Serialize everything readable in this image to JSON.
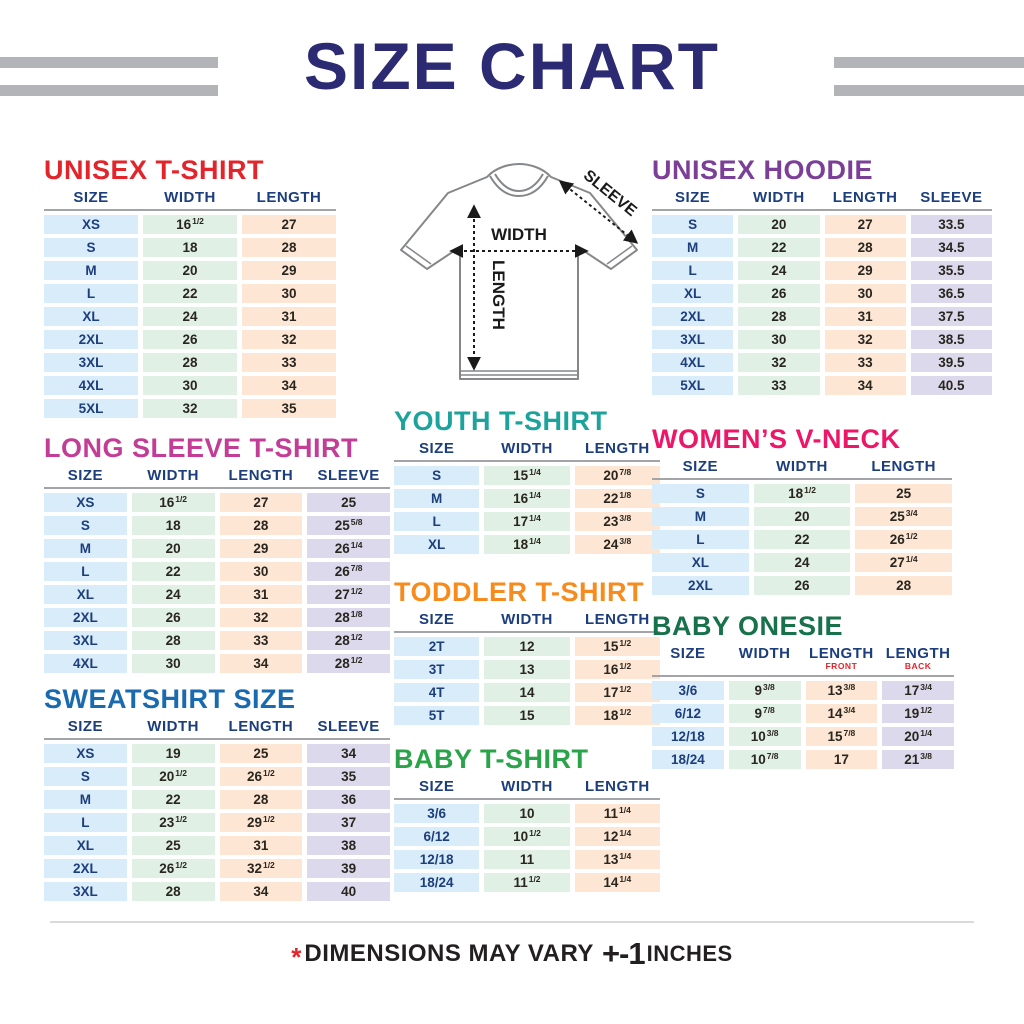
{
  "title": "SIZE CHART",
  "footer": {
    "asterisk": "*",
    "text": "DIMENSIONS MAY VARY",
    "variance": "+-1",
    "unit": "INCHES"
  },
  "diagram": {
    "width_label": "WIDTH",
    "length_label": "LENGTH",
    "sleeve_label": "SLEEVE"
  },
  "colors": {
    "title_navy": "#2b2a72",
    "header_navy": "#1d3e7d",
    "cell_dark": "#29251f",
    "size_bg": "#d9ecf9",
    "width_bg": "#e0f0e4",
    "length_bg": "#fde6d3",
    "sleeve_bg": "#dcd9ec",
    "gray_bar": "#b2b4b7",
    "accent_red": "#e3242b"
  },
  "tables": [
    {
      "id": "unisex-tshirt",
      "title": "UNISEX T-SHIRT",
      "title_color": "#e3242b",
      "columns": [
        {
          "label": "SIZE",
          "type": "size"
        },
        {
          "label": "WIDTH",
          "type": "width"
        },
        {
          "label": "LENGTH",
          "type": "length"
        }
      ],
      "rows": [
        [
          "XS",
          "16|1/2",
          "27"
        ],
        [
          "S",
          "18",
          "28"
        ],
        [
          "M",
          "20",
          "29"
        ],
        [
          "L",
          "22",
          "30"
        ],
        [
          "XL",
          "24",
          "31"
        ],
        [
          "2XL",
          "26",
          "32"
        ],
        [
          "3XL",
          "28",
          "33"
        ],
        [
          "4XL",
          "30",
          "34"
        ],
        [
          "5XL",
          "32",
          "35"
        ]
      ]
    },
    {
      "id": "long-sleeve-tshirt",
      "title": "LONG SLEEVE T-SHIRT",
      "title_color": "#c33d96",
      "columns": [
        {
          "label": "SIZE",
          "type": "size"
        },
        {
          "label": "WIDTH",
          "type": "width"
        },
        {
          "label": "LENGTH",
          "type": "length"
        },
        {
          "label": "SLEEVE",
          "type": "sleeve"
        }
      ],
      "rows": [
        [
          "XS",
          "16|1/2",
          "27",
          "25"
        ],
        [
          "S",
          "18",
          "28",
          "25|5/8"
        ],
        [
          "M",
          "20",
          "29",
          "26|1/4"
        ],
        [
          "L",
          "22",
          "30",
          "26|7/8"
        ],
        [
          "XL",
          "24",
          "31",
          "27|1/2"
        ],
        [
          "2XL",
          "26",
          "32",
          "28|1/8"
        ],
        [
          "3XL",
          "28",
          "33",
          "28|1/2"
        ],
        [
          "4XL",
          "30",
          "34",
          "28|1/2"
        ]
      ]
    },
    {
      "id": "sweatshirt",
      "title": "SWEATSHIRT SIZE",
      "title_color": "#1a6ab0",
      "columns": [
        {
          "label": "SIZE",
          "type": "size"
        },
        {
          "label": "WIDTH",
          "type": "width"
        },
        {
          "label": "LENGTH",
          "type": "length"
        },
        {
          "label": "SLEEVE",
          "type": "sleeve"
        }
      ],
      "rows": [
        [
          "XS",
          "19",
          "25",
          "34"
        ],
        [
          "S",
          "20|1/2",
          "26|1/2",
          "35"
        ],
        [
          "M",
          "22",
          "28",
          "36"
        ],
        [
          "L",
          "23|1/2",
          "29|1/2",
          "37"
        ],
        [
          "XL",
          "25",
          "31",
          "38"
        ],
        [
          "2XL",
          "26|1/2",
          "32|1/2",
          "39"
        ],
        [
          "3XL",
          "28",
          "34",
          "40"
        ]
      ]
    },
    {
      "id": "youth-tshirt",
      "title": "YOUTH T-SHIRT",
      "title_color": "#1ba39c",
      "columns": [
        {
          "label": "SIZE",
          "type": "size"
        },
        {
          "label": "WIDTH",
          "type": "width"
        },
        {
          "label": "LENGTH",
          "type": "length"
        }
      ],
      "rows": [
        [
          "S",
          "15|1/4",
          "20|7/8"
        ],
        [
          "M",
          "16|1/4",
          "22|1/8"
        ],
        [
          "L",
          "17|1/4",
          "23|3/8"
        ],
        [
          "XL",
          "18|1/4",
          "24|3/8"
        ]
      ]
    },
    {
      "id": "toddler-tshirt",
      "title": "TODDLER T-SHIRT",
      "title_color": "#f68b1e",
      "columns": [
        {
          "label": "SIZE",
          "type": "size"
        },
        {
          "label": "WIDTH",
          "type": "width"
        },
        {
          "label": "LENGTH",
          "type": "length"
        }
      ],
      "rows": [
        [
          "2T",
          "12",
          "15|1/2"
        ],
        [
          "3T",
          "13",
          "16|1/2"
        ],
        [
          "4T",
          "14",
          "17|1/2"
        ],
        [
          "5T",
          "15",
          "18|1/2"
        ]
      ]
    },
    {
      "id": "baby-tshirt",
      "title": "BABY T-SHIRT",
      "title_color": "#2aa34a",
      "columns": [
        {
          "label": "SIZE",
          "type": "size"
        },
        {
          "label": "WIDTH",
          "type": "width"
        },
        {
          "label": "LENGTH",
          "type": "length"
        }
      ],
      "rows": [
        [
          "3/6",
          "10",
          "11|1/4"
        ],
        [
          "6/12",
          "10|1/2",
          "12|1/4"
        ],
        [
          "12/18",
          "11",
          "13|1/4"
        ],
        [
          "18/24",
          "11|1/2",
          "14|1/4"
        ]
      ]
    },
    {
      "id": "unisex-hoodie",
      "title": "UNISEX HOODIE",
      "title_color": "#7b3f98",
      "columns": [
        {
          "label": "SIZE",
          "type": "size"
        },
        {
          "label": "WIDTH",
          "type": "width"
        },
        {
          "label": "LENGTH",
          "type": "length"
        },
        {
          "label": "SLEEVE",
          "type": "sleeve"
        }
      ],
      "rows": [
        [
          "S",
          "20",
          "27",
          "33.5"
        ],
        [
          "M",
          "22",
          "28",
          "34.5"
        ],
        [
          "L",
          "24",
          "29",
          "35.5"
        ],
        [
          "XL",
          "26",
          "30",
          "36.5"
        ],
        [
          "2XL",
          "28",
          "31",
          "37.5"
        ],
        [
          "3XL",
          "30",
          "32",
          "38.5"
        ],
        [
          "4XL",
          "32",
          "33",
          "39.5"
        ],
        [
          "5XL",
          "33",
          "34",
          "40.5"
        ]
      ]
    },
    {
      "id": "womens-vneck",
      "title": "WOMEN’S V-NECK",
      "title_color": "#ed1668",
      "columns": [
        {
          "label": "SIZE",
          "type": "size"
        },
        {
          "label": "WIDTH",
          "type": "width"
        },
        {
          "label": "LENGTH",
          "type": "length"
        }
      ],
      "rows": [
        [
          "S",
          "18|1/2",
          "25"
        ],
        [
          "M",
          "20",
          "25|3/4"
        ],
        [
          "L",
          "22",
          "26|1/2"
        ],
        [
          "XL",
          "24",
          "27|1/4"
        ],
        [
          "2XL",
          "26",
          "28"
        ]
      ]
    },
    {
      "id": "baby-onesie",
      "title": "BABY ONESIE",
      "title_color": "#17714a",
      "columns": [
        {
          "label": "SIZE",
          "type": "size"
        },
        {
          "label": "WIDTH",
          "type": "width"
        },
        {
          "label": "LENGTH",
          "sub": "FRONT",
          "type": "length"
        },
        {
          "label": "LENGTH",
          "sub": "BACK",
          "type": "sleeve"
        }
      ],
      "rows": [
        [
          "3/6",
          "9|3/8",
          "13|3/8",
          "17|3/4"
        ],
        [
          "6/12",
          "9|7/8",
          "14|3/4",
          "19|1/2"
        ],
        [
          "12/18",
          "10|3/8",
          "15|7/8",
          "20|1/4"
        ],
        [
          "18/24",
          "10|7/8",
          "17",
          "21|3/8"
        ]
      ]
    }
  ]
}
